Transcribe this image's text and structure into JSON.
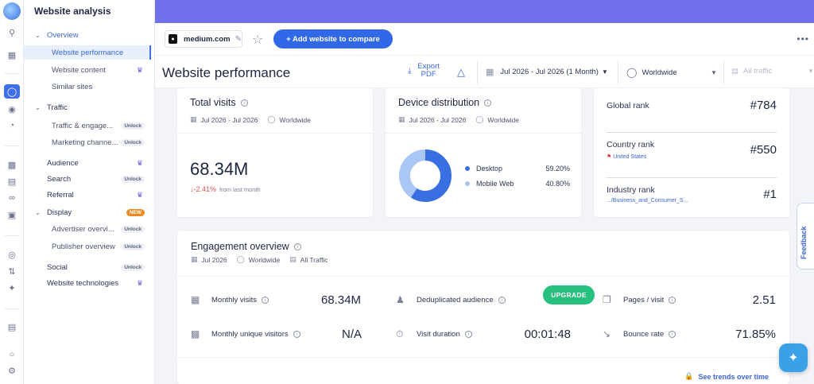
{
  "sidebar": {
    "title": "Website analysis",
    "items": [
      {
        "label": "Overview"
      },
      {
        "label": "Website performance"
      },
      {
        "label": "Website content"
      },
      {
        "label": "Similar sites"
      },
      {
        "label": "Traffic"
      },
      {
        "label": "Traffic & engage..."
      },
      {
        "label": "Marketing channe..."
      },
      {
        "label": "Audience"
      },
      {
        "label": "Search"
      },
      {
        "label": "Referral"
      },
      {
        "label": "Display"
      },
      {
        "label": "Advertiser overvi..."
      },
      {
        "label": "Publisher overview"
      },
      {
        "label": "Social"
      },
      {
        "label": "Website technologies"
      }
    ],
    "badges": {
      "unlock": "Unlock",
      "new": "NEW"
    }
  },
  "toolbar": {
    "domain": "medium.com",
    "compare_label": "+ Add website to compare"
  },
  "header": {
    "title": "Website performance",
    "export_line1": "Export",
    "export_line2": "PDF",
    "date_range": "Jul 2026 - Jul 2026 (1 Month)",
    "country": "Worldwide",
    "traffic": "All traffic"
  },
  "total_visits": {
    "title": "Total visits",
    "date": "Jul 2026 - Jul 2026",
    "country": "Worldwide",
    "value": "68.34M",
    "change": "↓-2.41%",
    "change_note": "from last month"
  },
  "device_distribution": {
    "title": "Device distribution",
    "date": "Jul 2026 - Jul 2026",
    "country": "Worldwide",
    "segments": [
      {
        "label": "Desktop",
        "value": "59.20%",
        "fraction": 0.592,
        "color": "#3a6fe2"
      },
      {
        "label": "Mobile Web",
        "value": "40.80%",
        "fraction": 0.408,
        "color": "#a9c6f5"
      }
    ]
  },
  "ranks": [
    {
      "label": "Global rank",
      "value": "#784",
      "sub": ""
    },
    {
      "label": "Country rank",
      "value": "#550",
      "sub": "United States"
    },
    {
      "label": "Industry rank",
      "value": "#1",
      "sub": ".../Business_and_Consumer_S..."
    }
  ],
  "engagement": {
    "title": "Engagement overview",
    "date": "Jul 2026",
    "country": "Worldwide",
    "traffic": "All Traffic",
    "metrics": [
      {
        "label": "Monthly visits",
        "value": "68.34M"
      },
      {
        "label": "Deduplicated audience",
        "value": "UPGRADE"
      },
      {
        "label": "Pages / visit",
        "value": "2.51"
      },
      {
        "label": "Monthly unique visitors",
        "value": "N/A"
      },
      {
        "label": "Visit duration",
        "value": "00:01:48"
      },
      {
        "label": "Bounce rate",
        "value": "71.85%"
      }
    ],
    "trends_link": "See trends over time"
  },
  "feedback_label": "Feedback"
}
